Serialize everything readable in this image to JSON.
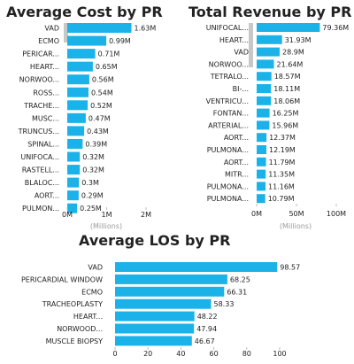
{
  "chart_data": [
    {
      "type": "bar",
      "orientation": "horizontal",
      "title": "Average Cost by PR",
      "categories": [
        "VAD",
        "ECMO",
        "PERICAR...",
        "HEART...",
        "NORWOO...",
        "ROSS...",
        "TRACHE...",
        "MUSC...",
        "TRUNCUS...",
        "SPINAL...",
        "UNIFOCA...",
        "RASTELL...",
        "BLALOC...",
        "AORT...",
        "PULMON..."
      ],
      "values": [
        1.63,
        0.99,
        0.71,
        0.65,
        0.56,
        0.54,
        0.52,
        0.47,
        0.43,
        0.39,
        0.32,
        0.32,
        0.3,
        0.29,
        0.25
      ],
      "value_labels": [
        "1.63M",
        "0.99M",
        "0.71M",
        "0.65M",
        "0.56M",
        "0.54M",
        "0.52M",
        "0.47M",
        "0.43M",
        "0.39M",
        "0.32M",
        "0.32M",
        "0.3M",
        "0.29M",
        "0.25M"
      ],
      "xlim": [
        0,
        2
      ],
      "ticks": [
        0,
        1,
        2
      ],
      "tick_labels": [
        "0M",
        "1M",
        "2M"
      ],
      "unit_label": "(Millions)",
      "grid": false,
      "color": "#1ab2e8"
    },
    {
      "type": "bar",
      "orientation": "horizontal",
      "title": "Total Revenue by PR",
      "categories": [
        "UNIFOCAL...",
        "HEART...",
        "VAD",
        "NORWOO...",
        "TETRALO...",
        "BI-...",
        "VENTRICU...",
        "FONTAN...",
        "ARTERIAL...",
        "AORT...",
        "PULMONA...",
        "AORT...",
        "MITR...",
        "PULMONA...",
        "PULMONA..."
      ],
      "values": [
        79.36,
        31.93,
        28.9,
        21.64,
        18.57,
        18.11,
        18.06,
        16.25,
        15.96,
        12.37,
        12.19,
        11.79,
        11.35,
        11.16,
        10.79
      ],
      "value_labels": [
        "79.36M",
        "31.93M",
        "28.9M",
        "21.64M",
        "18.57M",
        "18.11M",
        "18.06M",
        "16.25M",
        "15.96M",
        "12.37M",
        "12.19M",
        "11.79M",
        "11.35M",
        "11.16M",
        "10.79M"
      ],
      "xlim": [
        0,
        100
      ],
      "ticks": [
        0,
        50,
        100
      ],
      "tick_labels": [
        "0M",
        "50M",
        "100M"
      ],
      "unit_label": "(Millions)",
      "grid": false,
      "color": "#1ab2e8"
    },
    {
      "type": "bar",
      "orientation": "horizontal",
      "title": "Average LOS by PR",
      "categories": [
        "VAD",
        "PERICARDIAL WINDOW",
        "ECMO",
        "TRACHEOPLASTY",
        "HEART...",
        "NORWOOD...",
        "MUSCLE BIOPSY"
      ],
      "values": [
        98.57,
        68.25,
        66.31,
        58.33,
        48.22,
        47.94,
        46.67
      ],
      "value_labels": [
        "98.57",
        "68.25",
        "66.31",
        "58.33",
        "48.22",
        "47.94",
        "46.67"
      ],
      "xlim": [
        0,
        100
      ],
      "ticks": [
        0,
        20,
        40,
        60,
        80,
        100
      ],
      "tick_labels": [
        "0",
        "20",
        "40",
        "60",
        "80",
        "100"
      ],
      "grid": false,
      "color": "#1ab2e8"
    }
  ]
}
